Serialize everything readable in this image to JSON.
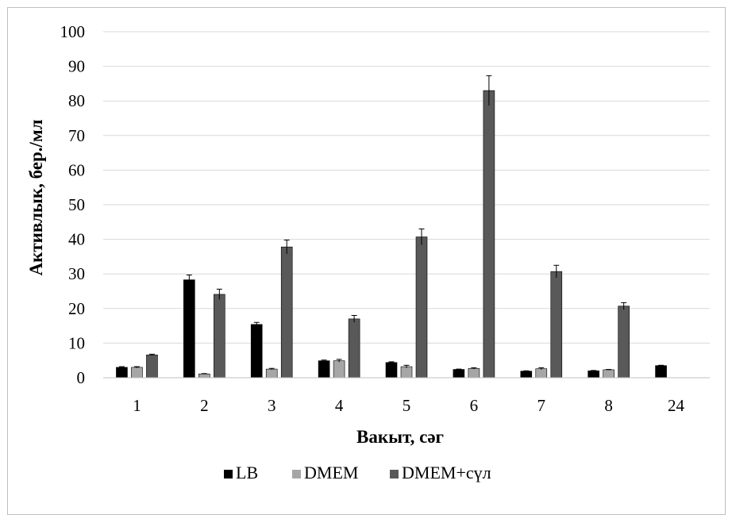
{
  "chart_data": {
    "type": "bar",
    "title": "",
    "xlabel": "Вакыт, сәг",
    "ylabel": "Активлык, бер./мл",
    "ylim": [
      0,
      100
    ],
    "ytick_step": 10,
    "yticks": [
      "0",
      "10",
      "20",
      "30",
      "40",
      "50",
      "60",
      "70",
      "80",
      "90",
      "100"
    ],
    "grid": true,
    "legend_position": "bottom",
    "categories": [
      "1",
      "2",
      "3",
      "4",
      "5",
      "6",
      "7",
      "8",
      "24"
    ],
    "series": [
      {
        "name": "LB",
        "color": "#000000",
        "values": [
          3.0,
          28.3,
          15.4,
          4.9,
          4.4,
          2.4,
          1.9,
          2.0,
          3.5
        ],
        "errors": [
          0.2,
          1.4,
          0.6,
          0.2,
          0.2,
          0.1,
          0.1,
          0.1,
          0.1
        ]
      },
      {
        "name": "DMEM",
        "color": "#a6a6a6",
        "values": [
          3.0,
          1.1,
          2.5,
          4.9,
          3.2,
          2.7,
          2.6,
          2.3,
          null
        ],
        "errors": [
          0.2,
          0.1,
          0.2,
          0.4,
          0.4,
          0.2,
          0.3,
          0.1,
          null
        ]
      },
      {
        "name": "DMEM+сүл",
        "color": "#595959",
        "values": [
          6.6,
          24.1,
          37.8,
          17.0,
          40.7,
          83.0,
          30.7,
          20.7,
          null
        ],
        "errors": [
          0.2,
          1.5,
          2.0,
          1.0,
          2.3,
          4.3,
          1.8,
          1.0,
          null
        ]
      }
    ]
  }
}
